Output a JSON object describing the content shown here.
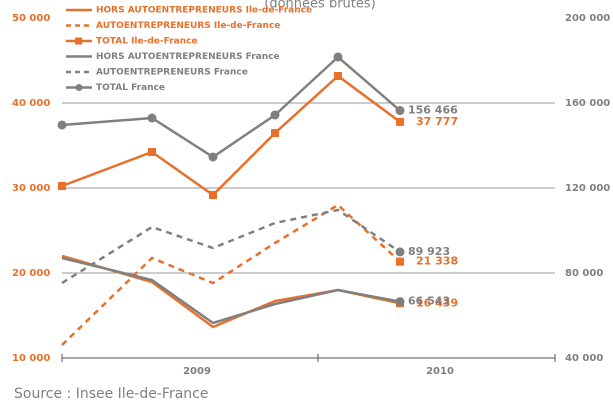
{
  "chart_data": {
    "type": "line",
    "subtitle": "(données brutes)",
    "source": "Source : Insee Ile-de-France",
    "categories": [
      null,
      null,
      null,
      null,
      null,
      null
    ],
    "x_groups": [
      "2009",
      "2010"
    ],
    "ylim": [
      10000,
      50000
    ],
    "yticks": [
      {
        "value": 10000,
        "label": "10 000"
      },
      {
        "value": 20000,
        "label": "20 000"
      },
      {
        "value": 30000,
        "label": "30 000"
      },
      {
        "value": 40000,
        "label": "40 000"
      },
      {
        "value": 50000,
        "label": "50 000"
      }
    ],
    "y2lim": [
      40000,
      200000
    ],
    "y2ticks": [
      {
        "value": 40000,
        "label": "40 000"
      },
      {
        "value": 80000,
        "label": "80 000"
      },
      {
        "value": 120000,
        "label": "120 000"
      },
      {
        "value": 160000,
        "label": "160 000"
      },
      {
        "value": 200000,
        "label": "200 000"
      }
    ],
    "grid": true,
    "legend": "top-left",
    "series": [
      {
        "name": "HORS AUTOENTREPRENEURS Ile-de-France",
        "color": "#e8702a",
        "dash": false,
        "marker": "square",
        "marker_last_only": true,
        "axis": "y",
        "values": [
          22000,
          18940,
          13650,
          16700,
          18000,
          16439
        ],
        "value_labels": [
          null,
          null,
          null,
          null,
          null,
          "16 439"
        ]
      },
      {
        "name": "AUTOENTREPRENEURS Ile-de-France",
        "color": "#e8702a",
        "dash": true,
        "marker": "square",
        "marker_last_only": true,
        "axis": "y",
        "values": [
          11530,
          21765,
          18820,
          23530,
          28000,
          21338
        ],
        "value_labels": [
          null,
          null,
          null,
          null,
          null,
          "21 338"
        ]
      },
      {
        "name": "TOTAL Ile-de-France",
        "color": "#e8702a",
        "dash": false,
        "marker": "square",
        "marker_last_only": false,
        "axis": "y",
        "values": [
          30235,
          34235,
          29176,
          36470,
          43176,
          37777
        ],
        "value_labels": [
          null,
          null,
          null,
          null,
          null,
          "37 777"
        ]
      },
      {
        "name": "HORS AUTOENTREPRENEURS France",
        "color": "#808080",
        "dash": false,
        "marker": "circle",
        "marker_last_only": true,
        "axis": "y2",
        "values": [
          87060,
          76700,
          56470,
          65410,
          72000,
          66543
        ],
        "value_labels": [
          null,
          null,
          null,
          null,
          null,
          "66 543"
        ]
      },
      {
        "name": "AUTOENTREPRENEURS France",
        "color": "#808080",
        "dash": true,
        "marker": "circle",
        "marker_last_only": true,
        "axis": "y2",
        "values": [
          75290,
          101650,
          91760,
          103530,
          109650,
          89923
        ],
        "value_labels": [
          null,
          null,
          null,
          null,
          null,
          "89 923"
        ]
      },
      {
        "name": "TOTAL France",
        "color": "#808080",
        "dash": false,
        "marker": "circle",
        "marker_last_only": false,
        "axis": "y2",
        "values": [
          149650,
          152940,
          134590,
          154350,
          181650,
          156466
        ],
        "value_labels": [
          null,
          null,
          null,
          null,
          null,
          "156 466"
        ]
      }
    ]
  }
}
